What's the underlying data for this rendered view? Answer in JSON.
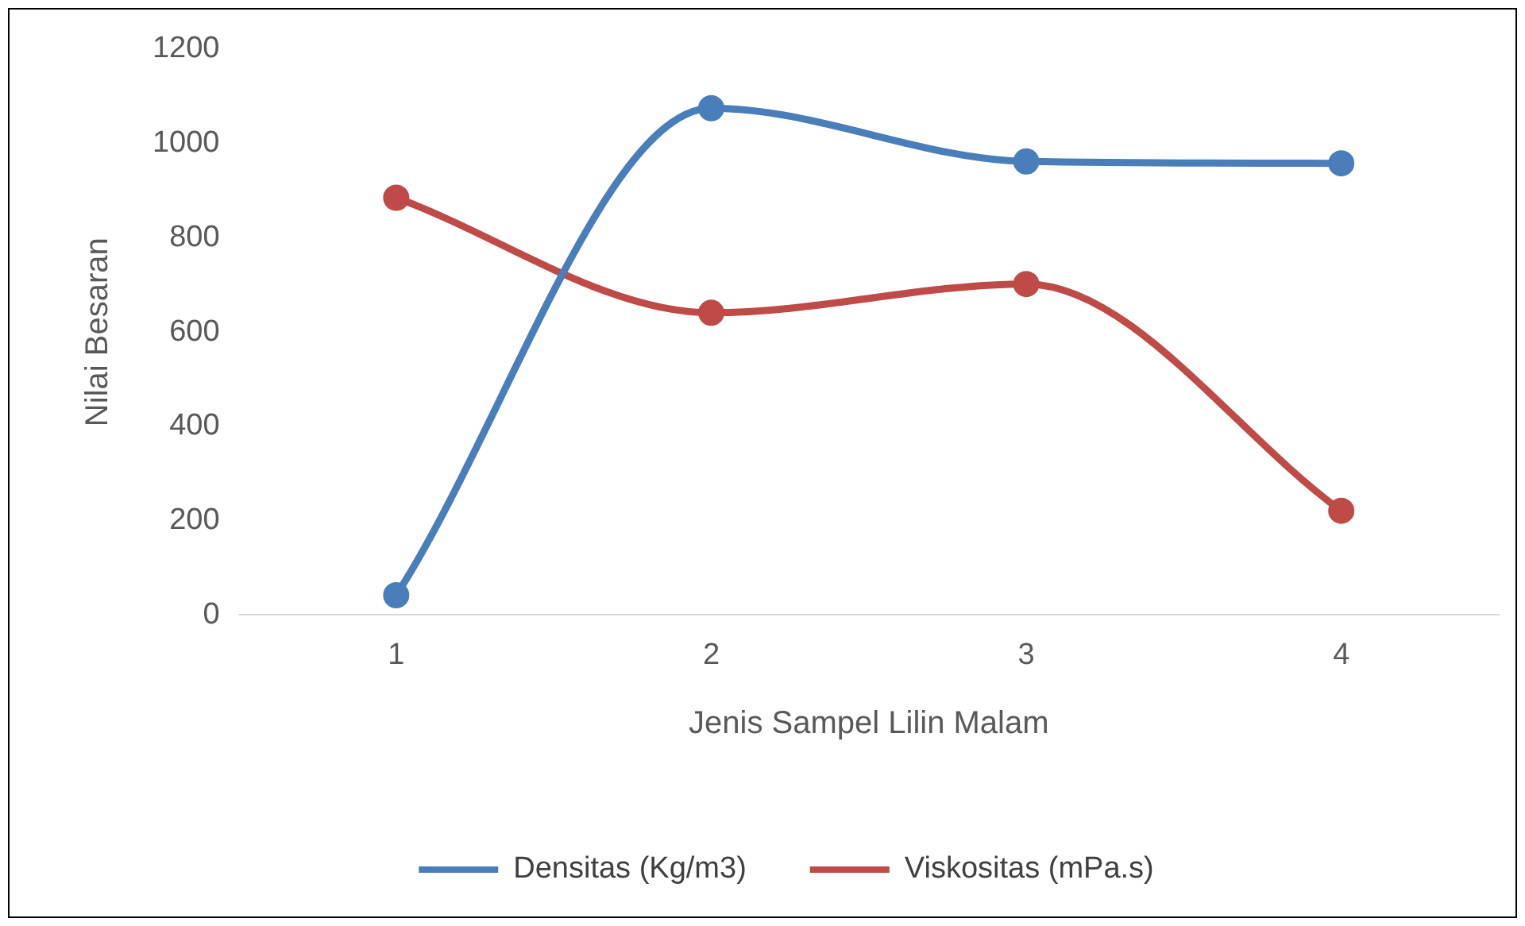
{
  "chart_data": {
    "type": "line",
    "xlabel": "Jenis Sampel Lilin Malam",
    "ylabel": "Nilai Besaran",
    "categories": [
      "1",
      "2",
      "3",
      "4"
    ],
    "series": [
      {
        "name": "Densitas (Kg/m3)",
        "color": "#4a7ebb",
        "values": [
          42,
          1075,
          962,
          958
        ]
      },
      {
        "name": "Viskositas (mPa.s)",
        "color": "#be4b48",
        "values": [
          885,
          641,
          702,
          221
        ]
      }
    ],
    "ylim": [
      0,
      1200
    ],
    "yticks": [
      0,
      200,
      400,
      600,
      800,
      1000,
      1200
    ],
    "grid": false,
    "legend": "bottom",
    "marker": "circle",
    "line_style": "solid"
  }
}
